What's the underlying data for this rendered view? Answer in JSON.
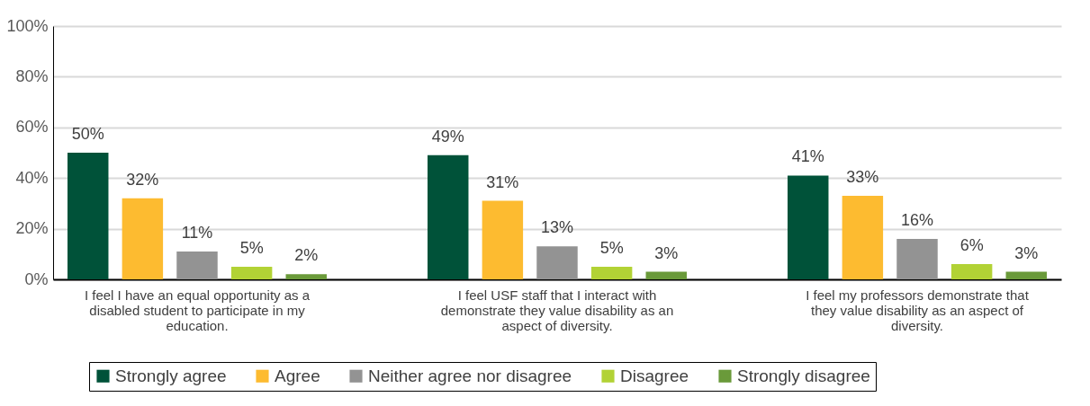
{
  "chart_data": {
    "type": "bar",
    "categories": [
      "I feel I have an equal opportunity as a disabled student to participate in my education.",
      "I feel USF staff that I interact with demonstrate they value disability as an aspect of diversity.",
      "I feel my professors demonstrate that they value disability as an aspect of diversity."
    ],
    "series": [
      {
        "name": "Strongly agree",
        "color": "#005239",
        "values": [
          50,
          49,
          41
        ],
        "value_labels": [
          "50%",
          "49%",
          "41%"
        ]
      },
      {
        "name": "Agree",
        "color": "#fdbb30",
        "values": [
          32,
          31,
          33
        ],
        "value_labels": [
          "32%",
          "31%",
          "33%"
        ]
      },
      {
        "name": "Neither agree nor disagree",
        "color": "#939393",
        "values": [
          11,
          13,
          16
        ],
        "value_labels": [
          "11%",
          "13%",
          "16%"
        ]
      },
      {
        "name": "Disagree",
        "color": "#b2d235",
        "values": [
          5,
          5,
          6
        ],
        "value_labels": [
          "5%",
          "5%",
          "6%"
        ]
      },
      {
        "name": "Strongly disagree",
        "color": "#6a9a3a",
        "values": [
          2,
          3,
          3
        ],
        "value_labels": [
          "2%",
          "3%",
          "3%"
        ]
      }
    ],
    "ylim": [
      0,
      100
    ],
    "yticks": [
      {
        "value": 0,
        "label": "0%"
      },
      {
        "value": 20,
        "label": "20%"
      },
      {
        "value": 40,
        "label": "40%"
      },
      {
        "value": 60,
        "label": "60%"
      },
      {
        "value": 80,
        "label": "80%"
      },
      {
        "value": 100,
        "label": "100%"
      }
    ],
    "grid": "y",
    "legend": "bottom"
  }
}
